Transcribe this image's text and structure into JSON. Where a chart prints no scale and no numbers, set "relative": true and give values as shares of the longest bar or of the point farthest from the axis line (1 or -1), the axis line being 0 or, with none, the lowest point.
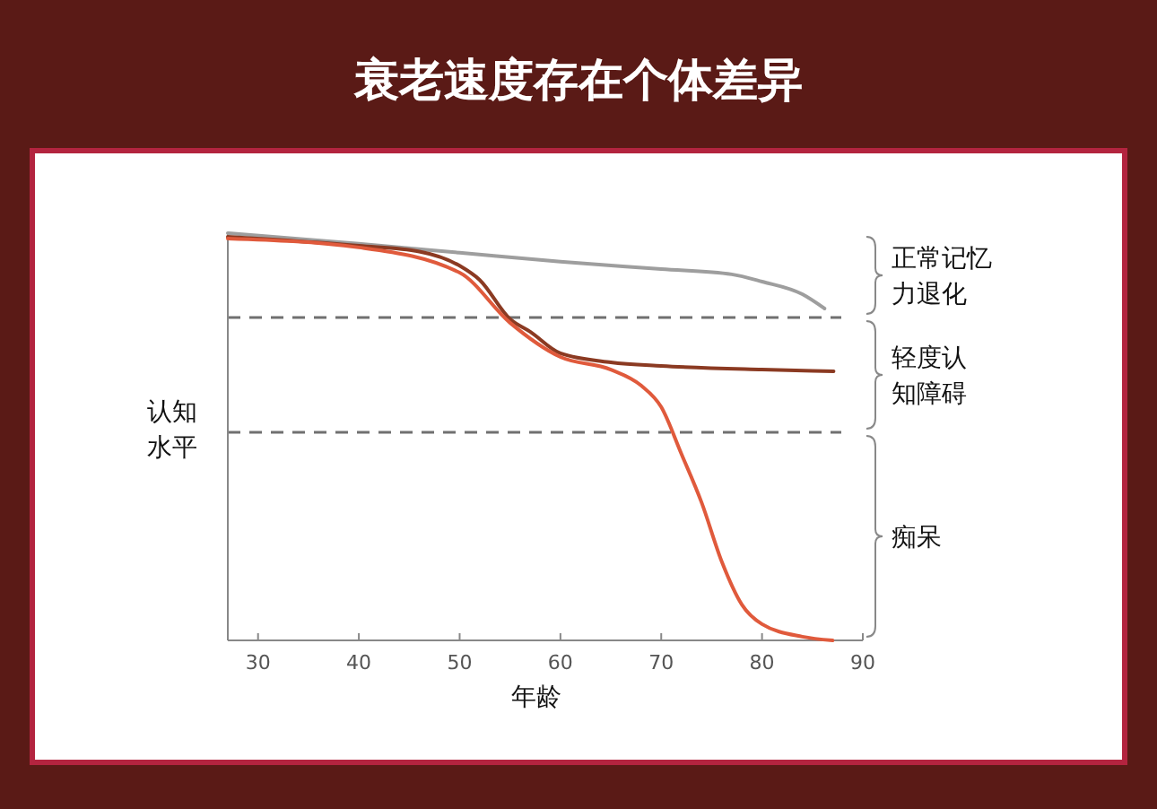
{
  "chart_data": {
    "type": "line",
    "title": "衰老速度存在个体差异",
    "xlabel": "年龄",
    "ylabel": "认知水平",
    "relative": true,
    "xlim": [
      27,
      90
    ],
    "xticks": [
      30,
      40,
      50,
      60,
      70,
      80,
      90
    ],
    "line_style": "solid",
    "marker": "none",
    "grid": false,
    "series": [
      {
        "color": "#9e9e9e",
        "x": [
          27,
          40,
          50,
          60,
          70,
          77,
          80,
          84,
          86.2
        ],
        "values": [
          1.0,
          0.974,
          0.952,
          0.93,
          0.912,
          0.899,
          0.881,
          0.85,
          0.815
        ]
      },
      {
        "color": "#8b3a22",
        "x": [
          27,
          40,
          46,
          50,
          52,
          55,
          57,
          60,
          65,
          70,
          80,
          87.1
        ],
        "values": [
          0.991,
          0.969,
          0.955,
          0.92,
          0.885,
          0.789,
          0.758,
          0.705,
          0.683,
          0.674,
          0.665,
          0.661
        ]
      },
      {
        "color": "#e05a3c",
        "x": [
          27,
          40,
          50,
          55,
          60,
          65,
          68,
          70,
          72,
          74,
          76,
          78,
          80,
          84,
          87
        ],
        "values": [
          0.987,
          0.965,
          0.903,
          0.78,
          0.696,
          0.665,
          0.626,
          0.573,
          0.458,
          0.339,
          0.194,
          0.088,
          0.04,
          0.009,
          0
        ]
      }
    ],
    "ref_lines": [
      {
        "axis": "y",
        "value": 0.793,
        "line_style": "dashed",
        "color": "#707070"
      },
      {
        "axis": "y",
        "value": 0.511,
        "line_style": "dashed",
        "color": "#707070"
      }
    ],
    "annotations": [
      "正常记忆力退化",
      "轻度认知障碍",
      "痴呆"
    ]
  }
}
